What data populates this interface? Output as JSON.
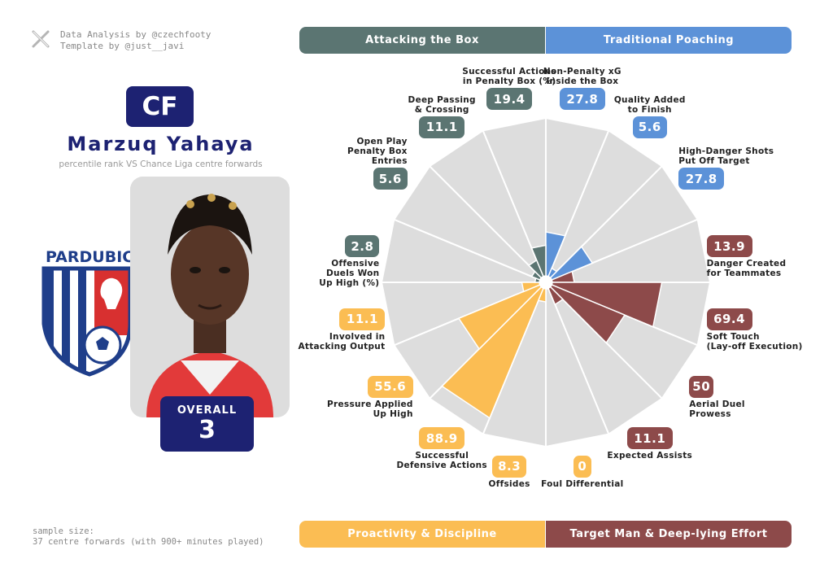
{
  "credits": {
    "line1": "Data Analysis by @czechfooty",
    "line2": "Template by @just__javi"
  },
  "player": {
    "position": "CF",
    "name": "Marzuq Yahaya",
    "subtitle": "percentile rank VS Chance Liga centre forwards",
    "club_text": "PARDUBICE",
    "overall_label": "OVERALL",
    "overall_value": "3"
  },
  "sample": {
    "line1": "sample size:",
    "line2": "37 centre forwards (with 900+ minutes played)"
  },
  "categories": {
    "top_left": "Attacking the Box",
    "top_right": "Traditional Poaching",
    "bottom_left": "Proactivity & Discipline",
    "bottom_right": "Target Man & Deep-lying Effort"
  },
  "colors": {
    "attacking_the_box": "#5b7572",
    "traditional_poaching": "#5c92d8",
    "proactivity_discipline": "#fbbd53",
    "target_man": "#8d4a4a",
    "wedge_background": "#dddddd",
    "navy": "#1d2272"
  },
  "chart_data": {
    "type": "radar",
    "range": [
      0,
      100
    ],
    "metrics": [
      {
        "label": "Non-Penalty xG\nInside the Box",
        "value": 27.8,
        "display": "27.8",
        "group": "traditional_poaching"
      },
      {
        "label": "Quality Added\nto Finish",
        "value": 5.6,
        "display": "5.6",
        "group": "traditional_poaching"
      },
      {
        "label": "High-Danger Shots\nPut Off Target",
        "value": 27.8,
        "display": "27.8",
        "group": "traditional_poaching"
      },
      {
        "label": "Danger Created\nfor Teammates",
        "value": 13.9,
        "display": "13.9",
        "group": "target_man"
      },
      {
        "label": "Soft Touch\n(Lay-off Execution)",
        "value": 69.4,
        "display": "69.4",
        "group": "target_man"
      },
      {
        "label": "Aerial Duel\nProwess",
        "value": 50,
        "display": "50",
        "group": "target_man"
      },
      {
        "label": "Expected Assists",
        "value": 11.1,
        "display": "11.1",
        "group": "target_man"
      },
      {
        "label": "Foul Differential",
        "value": 0,
        "display": "0",
        "group": "proactivity_discipline"
      },
      {
        "label": "Offsides",
        "value": 8.3,
        "display": "8.3",
        "group": "proactivity_discipline"
      },
      {
        "label": "Successful\nDefensive Actions",
        "value": 88.9,
        "display": "88.9",
        "group": "proactivity_discipline"
      },
      {
        "label": "Pressure Applied\nUp High",
        "value": 55.6,
        "display": "55.6",
        "group": "proactivity_discipline"
      },
      {
        "label": "Involved in\nAttacking Output",
        "value": 11.1,
        "display": "11.1",
        "group": "proactivity_discipline"
      },
      {
        "label": "Offensive\nDuels Won\nUp High (%)",
        "value": 2.8,
        "display": "2.8",
        "group": "attacking_the_box"
      },
      {
        "label": "Open Play\nPenalty Box\nEntries",
        "value": 5.6,
        "display": "5.6",
        "group": "attacking_the_box"
      },
      {
        "label": "Deep Passing\n& Crossing",
        "value": 11.1,
        "display": "11.1",
        "group": "attacking_the_box"
      },
      {
        "label": "Successful Actions\nin Penalty Box (%)",
        "value": 19.4,
        "display": "19.4",
        "group": "attacking_the_box"
      }
    ]
  }
}
